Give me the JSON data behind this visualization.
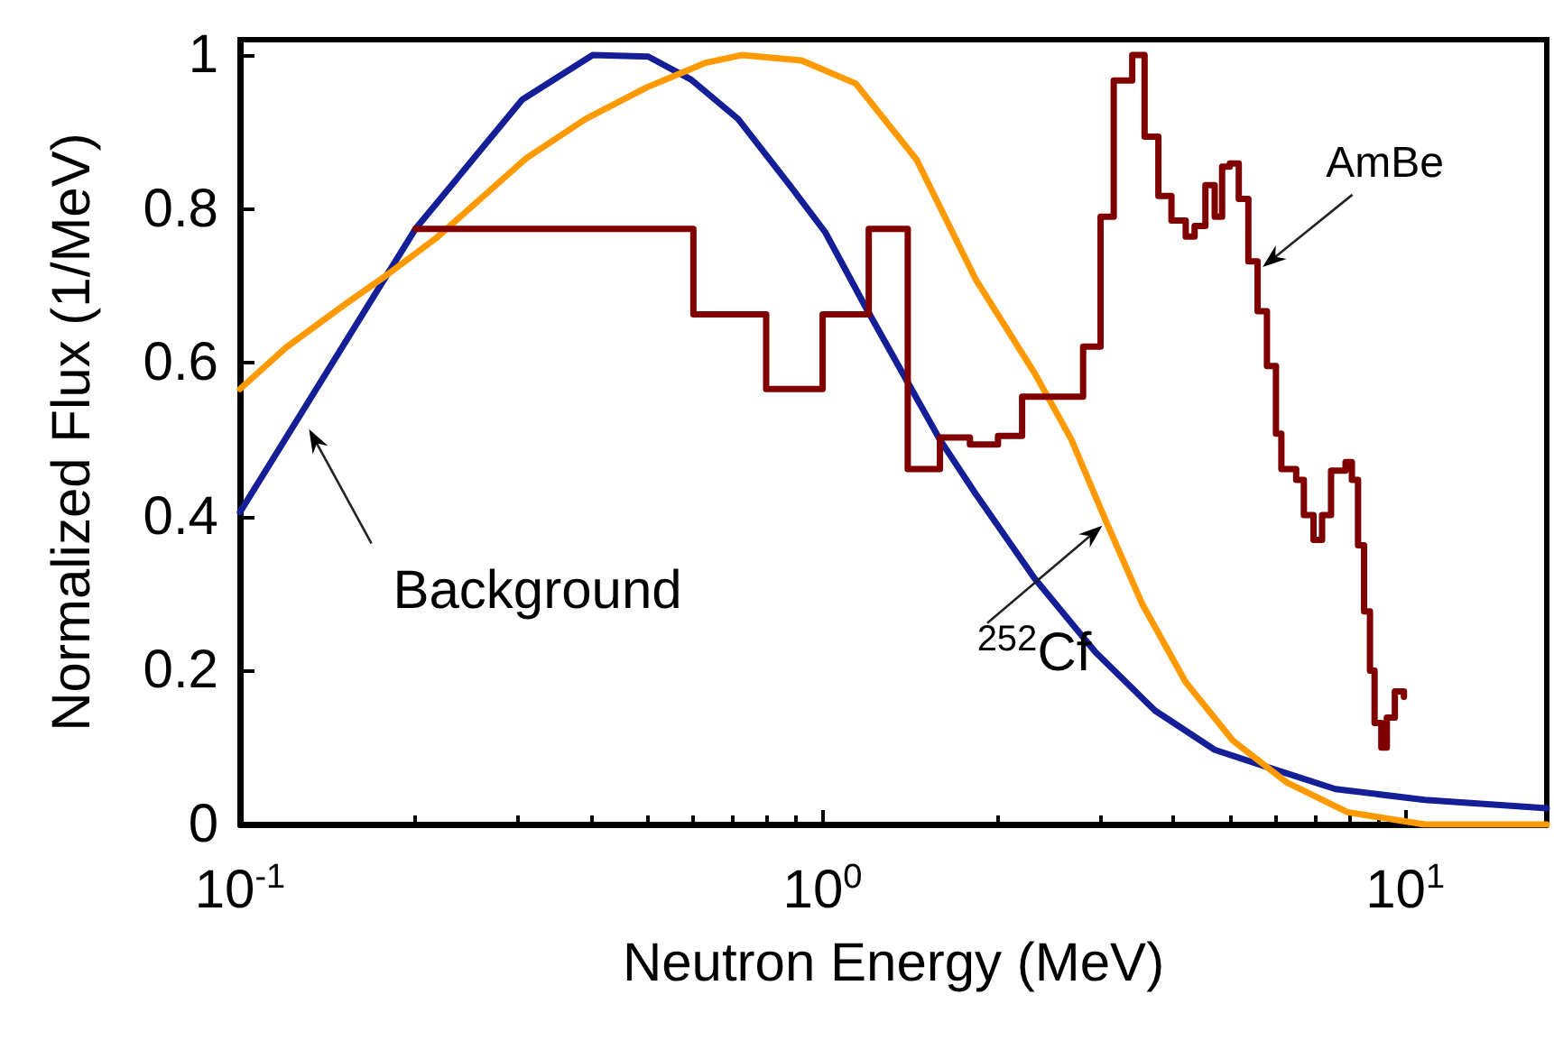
{
  "chart_data": {
    "type": "line",
    "xlabel": "Neutron Energy (MeV)",
    "ylabel": "Normalized Flux (1/MeV)",
    "log": "x",
    "xlim": [
      0.1,
      17.5
    ],
    "ylim": [
      0,
      1.02
    ],
    "xticks": [
      {
        "value": 0.1,
        "label": "10$^{-1}$"
      },
      {
        "value": 1,
        "label": "10$^{0}$"
      },
      {
        "value": 10,
        "label": "10$^{1}$"
      }
    ],
    "yticks": [
      0,
      0.2,
      0.4,
      0.6,
      0.8,
      1
    ],
    "grid": false,
    "marker": "none",
    "line_style": "solid",
    "series": [
      {
        "color": "#141e96",
        "x": [
          0.1,
          0.2,
          0.305,
          0.403,
          0.502,
          0.595,
          0.716,
          0.88,
          1.01,
          1.19,
          1.59,
          1.83,
          2.31,
          2.94,
          3.72,
          4.71,
          5.83,
          7.59,
          10.8,
          17.5
        ],
        "values": [
          0.406,
          0.774,
          0.942,
          1.0,
          0.998,
          0.968,
          0.917,
          0.83,
          0.77,
          0.67,
          0.5,
          0.43,
          0.32,
          0.224,
          0.148,
          0.097,
          0.074,
          0.046,
          0.032,
          0.021
        ]
      },
      {
        "color": "#ff9900",
        "x": [
          0.1,
          0.12,
          0.152,
          0.18,
          0.217,
          0.31,
          0.392,
          0.499,
          0.63,
          0.726,
          0.92,
          1.14,
          1.45,
          1.83,
          2.31,
          2.67,
          3.07,
          3.54,
          4.2,
          5.06,
          6.25,
          7.96,
          10.8,
          17.5
        ],
        "values": [
          0.566,
          0.62,
          0.677,
          0.716,
          0.762,
          0.866,
          0.917,
          0.958,
          0.99,
          1.0,
          0.993,
          0.963,
          0.864,
          0.709,
          0.587,
          0.501,
          0.393,
          0.286,
          0.185,
          0.109,
          0.055,
          0.016,
          0.0,
          0.0
        ]
      },
      {
        "type": "step",
        "color": "#800000",
        "x": [
          0.2,
          0.6,
          0.8,
          1.0,
          1.2,
          1.4,
          1.59,
          1.79,
          2.0,
          2.2,
          2.8,
          3.0,
          3.16,
          3.4,
          3.57,
          3.77,
          3.97,
          4.2,
          4.35,
          4.54,
          4.71,
          4.85,
          5.0,
          5.18,
          5.38,
          5.58,
          5.79,
          6.0,
          6.13,
          6.5,
          6.7,
          6.96,
          7.2,
          7.46,
          7.9,
          8.1,
          8.3,
          8.5,
          8.7,
          8.86,
          9.1,
          9.3,
          9.6,
          9.95
        ],
        "values": [
          0.774,
          0.663,
          0.566,
          0.663,
          0.774,
          0.462,
          0.503,
          0.494,
          0.505,
          0.556,
          0.621,
          0.79,
          0.967,
          1.0,
          0.894,
          0.817,
          0.785,
          0.764,
          0.778,
          0.831,
          0.79,
          0.855,
          0.859,
          0.813,
          0.732,
          0.667,
          0.596,
          0.508,
          0.462,
          0.448,
          0.402,
          0.37,
          0.402,
          0.46,
          0.471,
          0.448,
          0.363,
          0.277,
          0.2,
          0.132,
          0.1,
          0.139,
          0.173,
          0.166
        ]
      }
    ],
    "annotations": [
      {
        "text": "Background",
        "x": 0.13,
        "y": 0.52
      },
      {
        "text": "$^{252}$Cf",
        "x": 3.07,
        "y": 0.393
      },
      {
        "text": "AmBe",
        "x": 5.6,
        "y": 0.72
      }
    ]
  }
}
